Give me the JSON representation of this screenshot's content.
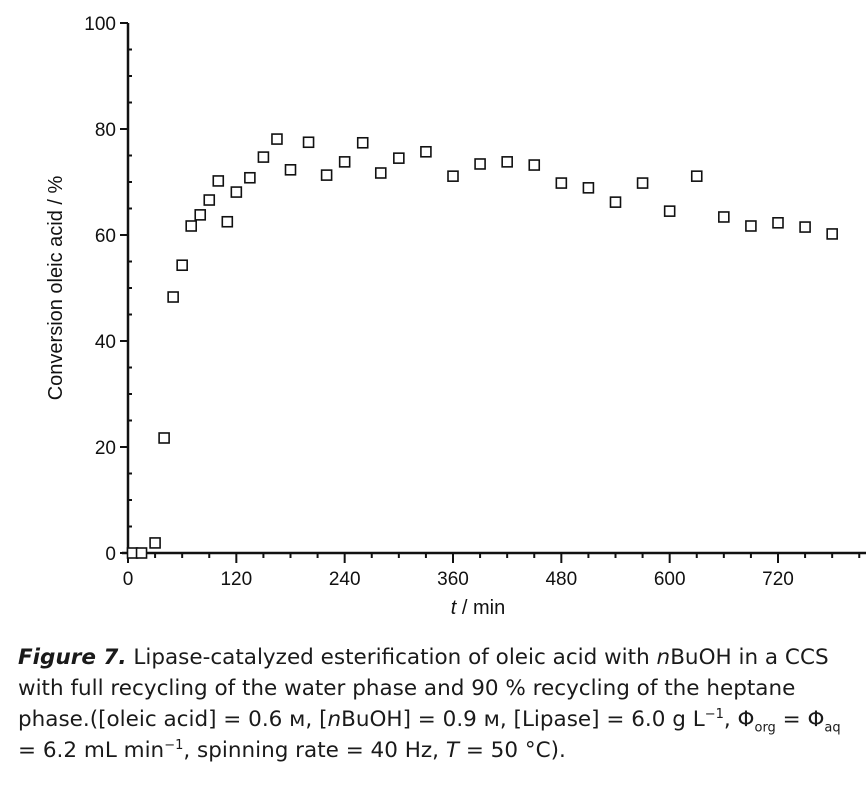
{
  "chart_data": {
    "type": "scatter",
    "xlabel_italic": "t",
    "xlabel_rest": " / min",
    "ylabel": "Conversion oleic acid / %",
    "xlim": [
      0,
      790
    ],
    "ylim": [
      0,
      100
    ],
    "xticks": [
      0,
      120,
      240,
      360,
      480,
      600,
      720
    ],
    "yticks": [
      0,
      20,
      40,
      60,
      80,
      100
    ],
    "marker": "open-square",
    "series": [
      {
        "name": "conversion",
        "x": [
          5,
          15,
          30,
          40,
          50,
          60,
          70,
          80,
          90,
          100,
          110,
          120,
          135,
          150,
          165,
          180,
          200,
          220,
          240,
          260,
          280,
          300,
          330,
          360,
          390,
          420,
          450,
          480,
          510,
          540,
          570,
          600,
          630,
          660,
          690,
          720,
          750,
          780
        ],
        "y": [
          0,
          0,
          1.9,
          21.7,
          48.3,
          54.3,
          61.7,
          63.8,
          66.6,
          70.2,
          62.5,
          68.1,
          70.8,
          74.7,
          78.1,
          72.3,
          77.5,
          71.3,
          73.8,
          77.4,
          71.7,
          74.5,
          75.7,
          71.1,
          73.4,
          73.8,
          73.2,
          69.8,
          68.9,
          66.2,
          69.8,
          64.5,
          71.1,
          63.4,
          61.7,
          62.3,
          61.5,
          60.2
        ]
      }
    ]
  },
  "caption": {
    "figure_label": "Figure 7.",
    "line1": " Lipase-catalyzed esterification of oleic acid with ",
    "n1": "n",
    "line1b": "BuOH in a CCS with full recycling of the water phase and 90 % recycling of the heptane phase.([oleic acid] = 0.6 м, [",
    "n2": "n",
    "line2": "BuOH] = 0.9 м, [Lipase] = 6.0 g L",
    "sup1": "−1",
    "phi_org": ", Φ",
    "org": "org",
    "phi_aq": " = Φ",
    "aq": "aq",
    "rest1": " = 6.2 mL min",
    "sup2": "−1",
    "rest2": ", spinning rate = 40 Hz, ",
    "T": "T",
    "rest3": " = 50 °C)."
  }
}
